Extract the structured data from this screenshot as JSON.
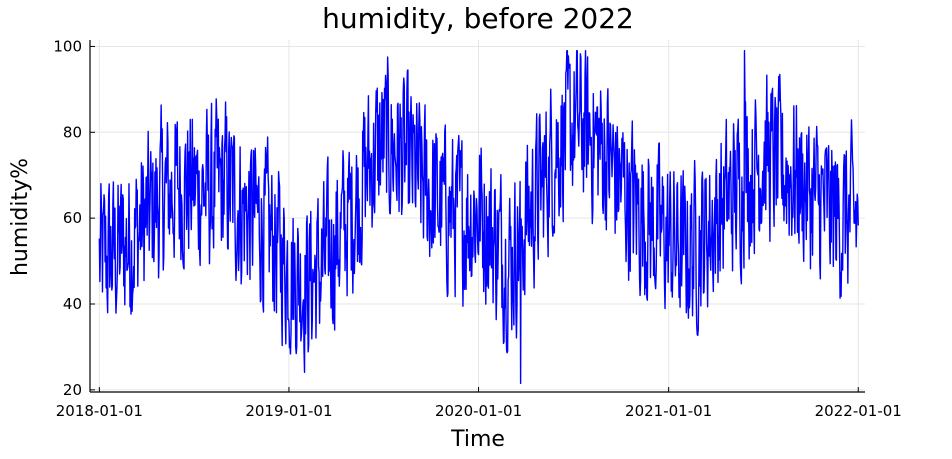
{
  "chart_data": {
    "type": "line",
    "title": "humidity, before 2022",
    "xlabel": "Time",
    "ylabel": "humidity%",
    "x_range": [
      "2018-01-01",
      "2022-01-01"
    ],
    "xlim": [
      "2017-12-14",
      "2022-01-14"
    ],
    "x_ticks": [
      "2018-01-01",
      "2019-01-01",
      "2020-01-01",
      "2021-01-01",
      "2022-01-01"
    ],
    "ylim": [
      19.5,
      101.5
    ],
    "y_ticks": [
      20,
      40,
      60,
      80,
      100
    ],
    "grid": true,
    "legend": "none",
    "series": [
      {
        "color": "#0000ff",
        "points_per_series": 1462,
        "monthly_centers": [
          50,
          52,
          55,
          60,
          65,
          68,
          67,
          66,
          68,
          62,
          60,
          55,
          48,
          45,
          48,
          55,
          62,
          72,
          78,
          75,
          70,
          65,
          62,
          60,
          62,
          55,
          50,
          60,
          68,
          78,
          82,
          80,
          75,
          68,
          62,
          58,
          55,
          52,
          55,
          60,
          65,
          70,
          75,
          72,
          70,
          65,
          62,
          60
        ],
        "extremes": {
          "max": {
            "x": "2021-05-27",
            "y": 99
          },
          "min": {
            "x": "2020-03-22",
            "y": 21.5
          }
        }
      }
    ]
  }
}
